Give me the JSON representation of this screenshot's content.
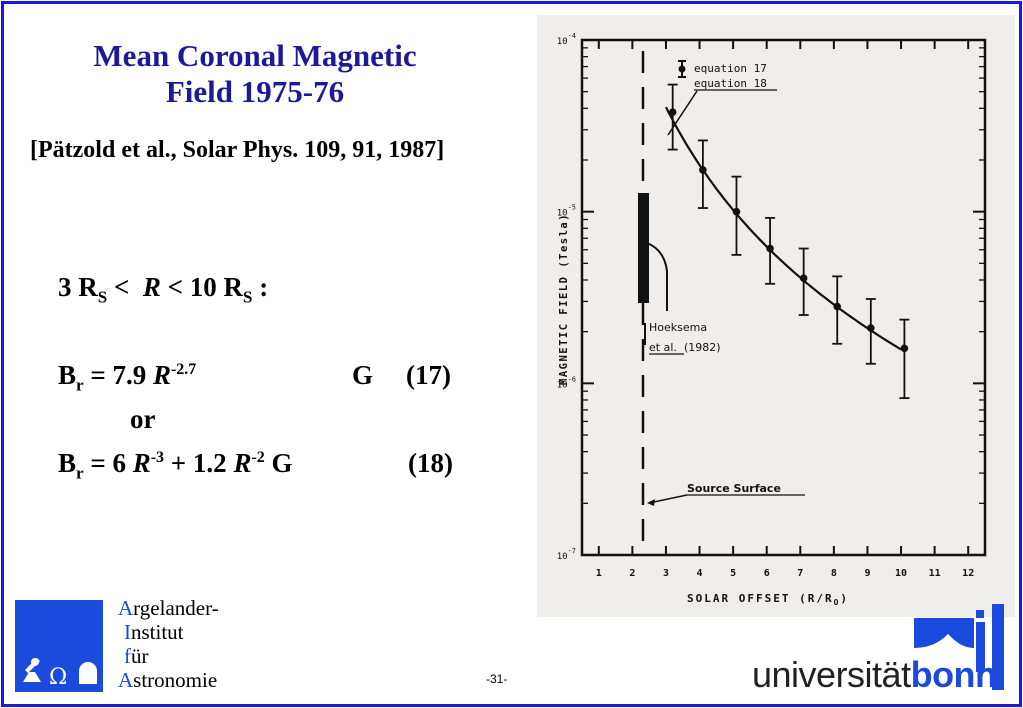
{
  "slide": {
    "title_line1": "Mean Coronal Magnetic",
    "title_line2": "Field 1975-76",
    "citation": "[Pätzold et al., Solar Phys. 109, 91, 1987]",
    "page_number": "-31-"
  },
  "formulas": {
    "range": {
      "a": "3 R",
      "a_sub": "S",
      "lt1": " <  ",
      "R": "R",
      "lt2": " < 10 R",
      "b_sub": "S",
      "colon": " :"
    },
    "eq17": {
      "B": "B",
      "sub": "r",
      "eq": " = 7.9 ",
      "R": "R",
      "exp": "-2.7",
      "unit": "G",
      "num": "(17)"
    },
    "or": "or",
    "eq18": {
      "B": "B",
      "sub": "r",
      "eq": " = 6 ",
      "R1": "R",
      "exp1": "-3",
      "plus": " + 1.2 ",
      "R2": "R",
      "exp2": "-2",
      "unit": " G",
      "num": "(18)"
    }
  },
  "chart_data": {
    "type": "scatter",
    "xlabel": "SOLAR OFFSET (R/R",
    "xlabel_sub": "O",
    "xlabel_close": ")",
    "ylabel": "MAGNETIC FIELD (Tesla)",
    "x_ticks": [
      "1",
      "2",
      "3",
      "4",
      "5",
      "6",
      "7",
      "8",
      "9",
      "10",
      "11",
      "12"
    ],
    "y_ticks": [
      {
        "base": "10",
        "exp": "-4"
      },
      {
        "base": "10",
        "exp": "-5"
      },
      {
        "base": "10",
        "exp": "-6"
      },
      {
        "base": "10",
        "exp": "-7"
      }
    ],
    "xlim": [
      0.5,
      12.5
    ],
    "ylim": [
      1e-07,
      0.0001
    ],
    "y_scale": "log",
    "legend": [
      "equation 17",
      "equation 18"
    ],
    "points": [
      {
        "x": 3.2,
        "y": 3.8e-05,
        "lo": 2.3e-05,
        "hi": 5.5e-05
      },
      {
        "x": 4.1,
        "y": 1.75e-05,
        "lo": 1.05e-05,
        "hi": 2.6e-05
      },
      {
        "x": 5.1,
        "y": 1e-05,
        "lo": 5.6e-06,
        "hi": 1.6e-05
      },
      {
        "x": 6.1,
        "y": 6.1e-06,
        "lo": 3.8e-06,
        "hi": 9.2e-06
      },
      {
        "x": 7.1,
        "y": 4.1e-06,
        "lo": 2.5e-06,
        "hi": 6.1e-06
      },
      {
        "x": 8.1,
        "y": 2.8e-06,
        "lo": 1.7e-06,
        "hi": 4.2e-06
      },
      {
        "x": 9.1,
        "y": 2.1e-06,
        "lo": 1.3e-06,
        "hi": 3.1e-06
      },
      {
        "x": 10.1,
        "y": 1.6e-06,
        "lo": 8.2e-07,
        "hi": 2.35e-06
      }
    ],
    "annotations": {
      "hoeksema_line1": "Hoeksema",
      "hoeksema_etal": "et al.",
      "hoeksema_year": " (1982)",
      "source_surface": "Source Surface"
    },
    "source_surface_x": 2.5
  },
  "logos": {
    "aifa_lines": [
      {
        "initial": "A",
        "rest": "rgelander-"
      },
      {
        "initial": "I",
        "rest": "nstitut"
      },
      {
        "initial": "f",
        "rest": "ür"
      },
      {
        "initial": "A",
        "rest": "stronomie"
      }
    ],
    "aifa_symbols": "Ω",
    "bonn_regular": "universität",
    "bonn_bold": "bonn"
  },
  "colors": {
    "frame": "#1a1adb",
    "title": "#1a1a9a",
    "logo_blue": "#1a4bdc"
  }
}
